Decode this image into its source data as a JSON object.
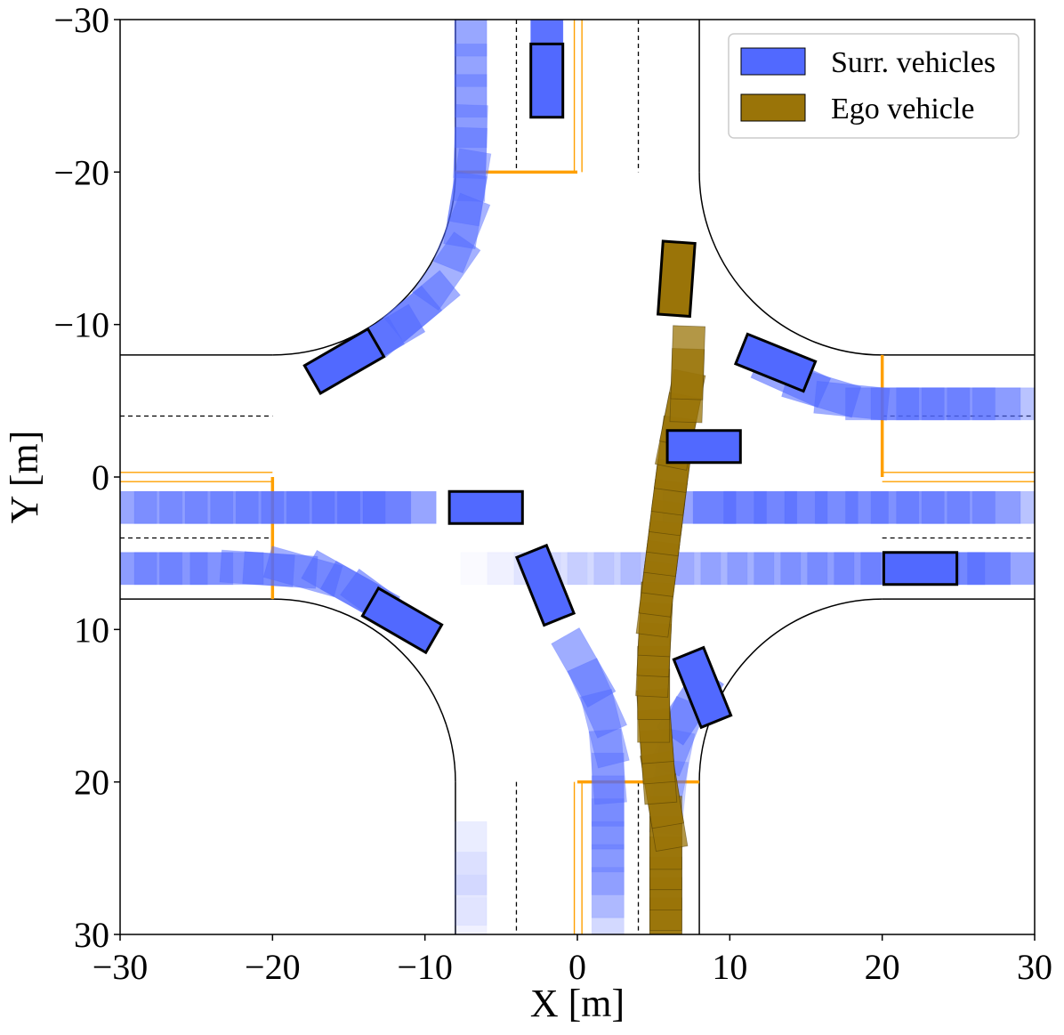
{
  "chart_data": {
    "type": "scatter",
    "title": "",
    "xlabel": "X [m]",
    "ylabel": "Y [m]",
    "xlim": [
      -30,
      30
    ],
    "ylim": [
      30,
      -30
    ],
    "y_inverted": true,
    "grid": false,
    "legend_placement": "top-right",
    "x_ticks": [
      -30,
      -20,
      -10,
      0,
      10,
      20,
      30
    ],
    "y_ticks": [
      -30,
      -20,
      -10,
      0,
      10,
      20,
      30
    ],
    "x_tick_labels": [
      "−30",
      "−20",
      "−10",
      "0",
      "10",
      "20",
      "30"
    ],
    "y_tick_labels": [
      "−30",
      "−20",
      "−10",
      "0",
      "10",
      "20",
      "30"
    ],
    "colors": {
      "surrounding": "#5169ff",
      "ego": "#9a7408",
      "stop_line": "#ffa000",
      "road_edge": "#000000"
    },
    "legend": [
      {
        "label": "Surr. vehicles",
        "color": "#5169ff"
      },
      {
        "label": "Ego vehicle",
        "color": "#9a7408"
      }
    ],
    "road": {
      "edge_lines": [
        [
          [
            -30,
            -8
          ],
          [
            -20,
            -8
          ]
        ],
        [
          [
            20,
            -8
          ],
          [
            30,
            -8
          ]
        ],
        [
          [
            -30,
            8
          ],
          [
            -20,
            8
          ]
        ],
        [
          [
            20,
            8
          ],
          [
            30,
            8
          ]
        ],
        [
          [
            -8,
            -30
          ],
          [
            -8,
            -20
          ]
        ],
        [
          [
            8,
            -30
          ],
          [
            8,
            -20
          ]
        ],
        [
          [
            -8,
            20
          ],
          [
            -8,
            30
          ]
        ],
        [
          [
            8,
            20
          ],
          [
            8,
            30
          ]
        ]
      ],
      "corner_arcs": [
        {
          "center": [
            -20,
            -20
          ],
          "from": [
            -8,
            -20
          ],
          "to": [
            -20,
            -8
          ]
        },
        {
          "center": [
            20,
            -20
          ],
          "from": [
            8,
            -20
          ],
          "to": [
            20,
            -8
          ]
        },
        {
          "center": [
            -20,
            20
          ],
          "from": [
            -8,
            20
          ],
          "to": [
            -20,
            8
          ]
        },
        {
          "center": [
            20,
            20
          ],
          "from": [
            8,
            20
          ],
          "to": [
            20,
            8
          ]
        }
      ],
      "dashed_lines": [
        [
          [
            -4,
            -30
          ],
          [
            -4,
            -20
          ]
        ],
        [
          [
            4,
            -30
          ],
          [
            4,
            -20
          ]
        ],
        [
          [
            -4,
            20
          ],
          [
            -4,
            30
          ]
        ],
        [
          [
            4,
            20
          ],
          [
            4,
            30
          ]
        ],
        [
          [
            -30,
            -4
          ],
          [
            -20,
            -4
          ]
        ],
        [
          [
            -30,
            4
          ],
          [
            -20,
            4
          ]
        ],
        [
          [
            20,
            -4
          ],
          [
            30,
            -4
          ]
        ],
        [
          [
            20,
            4
          ],
          [
            30,
            4
          ]
        ]
      ],
      "stop_lines": [
        [
          [
            -8,
            -20
          ],
          [
            0,
            -20
          ]
        ],
        [
          [
            0,
            20
          ],
          [
            8,
            20
          ]
        ],
        [
          [
            -20,
            0
          ],
          [
            -20,
            8
          ]
        ],
        [
          [
            20,
            -8
          ],
          [
            20,
            0
          ]
        ]
      ],
      "lane_guides": [
        [
          [
            -0.2,
            -30
          ],
          [
            -0.2,
            -20
          ]
        ],
        [
          [
            0.3,
            -30
          ],
          [
            0.3,
            -20
          ]
        ],
        [
          [
            -0.2,
            20
          ],
          [
            -0.2,
            30
          ]
        ],
        [
          [
            0.3,
            20
          ],
          [
            0.3,
            30
          ]
        ],
        [
          [
            -30,
            -0.3
          ],
          [
            -20,
            -0.3
          ]
        ],
        [
          [
            -30,
            0.3
          ],
          [
            -20,
            0.3
          ]
        ],
        [
          [
            20,
            -0.3
          ],
          [
            30,
            -0.3
          ]
        ],
        [
          [
            20,
            0.3
          ],
          [
            30,
            0.3
          ]
        ]
      ]
    },
    "surrounding_trajectories": [
      {
        "points": [
          [
            -7,
            -30
          ],
          [
            -7,
            -26
          ],
          [
            -7,
            -22
          ],
          [
            -7.1,
            -19
          ],
          [
            -7.6,
            -16
          ],
          [
            -8.6,
            -13.5
          ],
          [
            -10.2,
            -11.2
          ],
          [
            -12.6,
            -9.2
          ],
          [
            -15.3,
            -7.6
          ]
        ],
        "opacity": [
          0.35,
          0.6
        ]
      },
      {
        "points": [
          [
            -30,
            2
          ],
          [
            -25,
            2
          ],
          [
            -20,
            2
          ],
          [
            -15,
            2
          ],
          [
            -10,
            2
          ]
        ],
        "opacity": [
          0.35,
          0.6
        ]
      },
      {
        "points": [
          [
            -30,
            6
          ],
          [
            -25,
            6
          ],
          [
            -21,
            6
          ],
          [
            -18,
            6.2
          ],
          [
            -15.5,
            6.9
          ],
          [
            -13,
            8.3
          ],
          [
            -11.5,
            9.4
          ]
        ],
        "opacity": [
          0.4,
          0.6
        ]
      },
      {
        "points": [
          [
            -7,
            30
          ],
          [
            -7,
            27
          ],
          [
            -7,
            23
          ]
        ],
        "opacity": [
          0.03,
          0.12
        ]
      },
      {
        "points": [
          [
            2,
            28
          ],
          [
            2,
            25
          ],
          [
            2,
            22
          ],
          [
            2,
            19
          ],
          [
            1.8,
            16.5
          ],
          [
            1.3,
            14.5
          ],
          [
            0.4,
            12.5
          ],
          [
            -0.8,
            10.4
          ]
        ],
        "opacity": [
          0.25,
          0.55
        ]
      },
      {
        "points": [
          [
            -7,
            6
          ],
          [
            0,
            6
          ],
          [
            7,
            6
          ],
          [
            14,
            6
          ],
          [
            21,
            6
          ],
          [
            26,
            6
          ],
          [
            30,
            6
          ]
        ],
        "opacity": [
          0.0,
          0.6
        ]
      },
      {
        "points": [
          [
            6,
            21
          ],
          [
            6.2,
            19
          ],
          [
            6.6,
            17
          ],
          [
            7.4,
            15
          ],
          [
            8.2,
            13.8
          ]
        ],
        "opacity": [
          0.3,
          0.6
        ]
      },
      {
        "points": [
          [
            8,
            2
          ],
          [
            14,
            2
          ],
          [
            20,
            2
          ],
          [
            25,
            2
          ],
          [
            30,
            2
          ]
        ],
        "opacity": [
          0.6,
          0.4
        ]
      },
      {
        "points": [
          [
            14,
            -6.5
          ],
          [
            16,
            -5.6
          ],
          [
            18,
            -5
          ],
          [
            20,
            -4.8
          ],
          [
            25,
            -4.8
          ],
          [
            30,
            -4.8
          ]
        ],
        "opacity": [
          0.6,
          0.4
        ]
      },
      {
        "points": [
          [
            -2,
            -30
          ],
          [
            -2,
            -28
          ],
          [
            -2,
            -26
          ]
        ],
        "opacity": [
          0.7,
          0.8
        ]
      }
    ],
    "surrounding_vehicles": [
      {
        "x": -2,
        "y": -26,
        "heading_deg": 90
      },
      {
        "x": -15.3,
        "y": -7.6,
        "heading_deg": -30
      },
      {
        "x": -6,
        "y": 2,
        "heading_deg": 0
      },
      {
        "x": -11.5,
        "y": 9.4,
        "heading_deg": 30
      },
      {
        "x": -2.1,
        "y": 7.1,
        "heading_deg": 68
      },
      {
        "x": 8.2,
        "y": 13.8,
        "heading_deg": 68
      },
      {
        "x": 8.3,
        "y": -2,
        "heading_deg": 0
      },
      {
        "x": 13,
        "y": -7.5,
        "heading_deg": 22
      },
      {
        "x": 22.5,
        "y": 6,
        "heading_deg": 0
      }
    ],
    "ego_trajectory": {
      "points": [
        [
          5.8,
          30
        ],
        [
          5.8,
          26
        ],
        [
          5.8,
          22
        ],
        [
          5.3,
          19
        ],
        [
          5.0,
          15
        ],
        [
          5.0,
          12
        ],
        [
          5.2,
          8
        ],
        [
          5.7,
          4
        ],
        [
          6.2,
          0
        ],
        [
          6.6,
          -3
        ],
        [
          7.2,
          -6
        ],
        [
          7.3,
          -9
        ]
      ]
    },
    "ego_vehicle": {
      "x": 6.5,
      "y": -13,
      "heading_deg": 94
    }
  }
}
